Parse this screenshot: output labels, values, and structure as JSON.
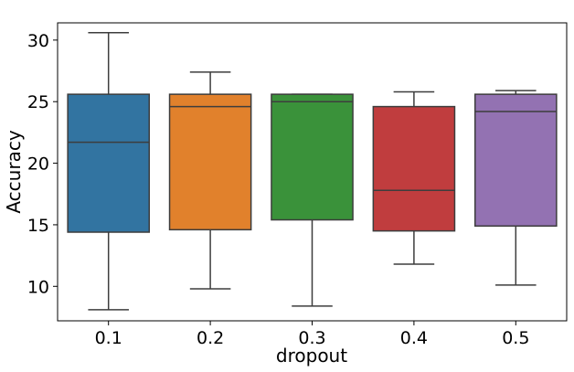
{
  "chart_data": {
    "type": "box",
    "title": "",
    "xlabel": "dropout",
    "ylabel": "Accuracy",
    "categories": [
      "0.1",
      "0.2",
      "0.3",
      "0.4",
      "0.5"
    ],
    "ylim": [
      7.2,
      31.4
    ],
    "yticks": [
      10,
      15,
      20,
      25,
      30
    ],
    "grid": false,
    "legend": "none",
    "boxes": [
      {
        "category": "0.1",
        "min": 8.1,
        "q1": 14.4,
        "median": 21.7,
        "q3": 25.6,
        "max": 30.6,
        "color": "#3274a1"
      },
      {
        "category": "0.2",
        "min": 9.8,
        "q1": 14.6,
        "median": 24.6,
        "q3": 25.6,
        "max": 27.4,
        "color": "#e1812c"
      },
      {
        "category": "0.3",
        "min": 8.4,
        "q1": 15.4,
        "median": 25.0,
        "q3": 25.6,
        "max": 25.6,
        "color": "#3a923a"
      },
      {
        "category": "0.4",
        "min": 11.8,
        "q1": 14.5,
        "median": 17.8,
        "q3": 24.6,
        "max": 25.8,
        "color": "#c03d3e"
      },
      {
        "category": "0.5",
        "min": 10.1,
        "q1": 14.9,
        "median": 24.2,
        "q3": 25.6,
        "max": 25.9,
        "color": "#9372b2"
      }
    ]
  }
}
